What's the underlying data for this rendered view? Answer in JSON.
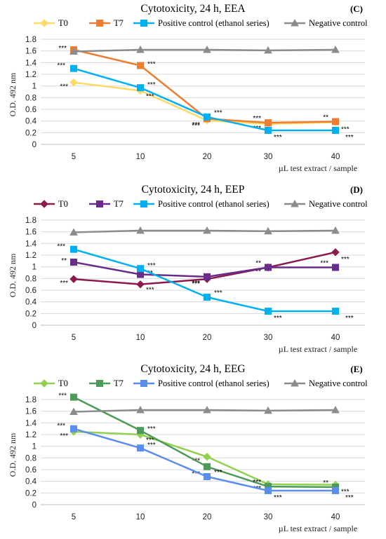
{
  "chart_data": [
    {
      "type": "line",
      "title": "Cytotoxicity, 24 h, EEA",
      "panel_label": "(C)",
      "xlabel": "µL test extract / sample",
      "ylabel": "O.D. 492 nm",
      "categories": [
        "5",
        "10",
        "20",
        "30",
        "40"
      ],
      "ylim": [
        0,
        1.8
      ],
      "yticks": [
        "0",
        "0.2",
        "0.4",
        "0.6",
        "0.8",
        "1",
        "1.2",
        "1.4",
        "1.6",
        "1.8"
      ],
      "grid": true,
      "legend_position": "top",
      "series": [
        {
          "name": "T0",
          "color": "#ffd966",
          "marker": "diamond",
          "values": [
            1.06,
            0.92,
            0.41,
            0.35,
            0.38
          ],
          "labels": [
            "***",
            "***",
            "***",
            "***",
            "***"
          ]
        },
        {
          "name": "T7",
          "color": "#ed7d31",
          "marker": "square",
          "values": [
            1.62,
            1.35,
            0.44,
            0.37,
            0.39
          ],
          "labels": [
            "***",
            "***",
            "***",
            "***",
            "**"
          ]
        },
        {
          "name": "Positive control (ethanol series)",
          "color": "#00b0f0",
          "marker": "square",
          "values": [
            1.3,
            0.97,
            0.47,
            0.24,
            0.24
          ],
          "labels": [
            "***",
            "***",
            "***",
            "***",
            "***"
          ]
        },
        {
          "name": "Negative control",
          "color": "#8c8c8c",
          "marker": "triangle",
          "values": [
            1.59,
            1.62,
            1.62,
            1.61,
            1.62
          ],
          "labels": [
            "",
            "",
            "",
            "",
            ""
          ]
        }
      ]
    },
    {
      "type": "line",
      "title": "Cytotoxicity, 24 h, EEP",
      "panel_label": "(D)",
      "xlabel": "µL test extract / sample",
      "ylabel": "O.D. 492 nm",
      "categories": [
        "5",
        "10",
        "20",
        "30",
        "40"
      ],
      "ylim": [
        0,
        1.8
      ],
      "yticks": [
        "0",
        "0.2",
        "0.4",
        "0.6",
        "0.8",
        "1",
        "1.2",
        "1.4",
        "1.6",
        "1.8"
      ],
      "grid": true,
      "legend_position": "top",
      "series": [
        {
          "name": "T0",
          "color": "#8b1a4f",
          "marker": "diamond",
          "values": [
            0.79,
            0.7,
            0.79,
            0.99,
            1.25
          ],
          "labels": [
            "***",
            "***",
            "***",
            "**",
            "***"
          ]
        },
        {
          "name": "T7",
          "color": "#6a2c8a",
          "marker": "square",
          "values": [
            1.08,
            0.87,
            0.83,
            0.99,
            0.99
          ],
          "labels": [
            "**",
            "**",
            "***",
            "**",
            "***"
          ]
        },
        {
          "name": "Positive control (ethanol series)",
          "color": "#00b0f0",
          "marker": "square",
          "values": [
            1.3,
            0.97,
            0.48,
            0.24,
            0.24
          ],
          "labels": [
            "***",
            "***",
            "***",
            "***",
            "***"
          ]
        },
        {
          "name": "Negative control",
          "color": "#8c8c8c",
          "marker": "triangle",
          "values": [
            1.59,
            1.62,
            1.62,
            1.61,
            1.62
          ],
          "labels": [
            "",
            "",
            "",
            "",
            ""
          ]
        }
      ]
    },
    {
      "type": "line",
      "title": "Cytotoxicity, 24 h, EEG",
      "panel_label": "(E)",
      "xlabel": "µL test extract / sample",
      "ylabel": "O.D. 492 nm",
      "categories": [
        "5",
        "10",
        "20",
        "30",
        "40"
      ],
      "ylim": [
        0,
        1.8
      ],
      "yticks": [
        "0",
        "0.2",
        "0.4",
        "0.6",
        "0.8",
        "1",
        "1.2",
        "1.4",
        "1.6",
        "1.8"
      ],
      "grid": true,
      "legend_position": "top",
      "series": [
        {
          "name": "T0",
          "color": "#92d050",
          "marker": "diamond",
          "values": [
            1.25,
            1.2,
            0.82,
            0.35,
            0.34
          ],
          "labels": [
            "***",
            "***",
            "***",
            "***",
            "***"
          ]
        },
        {
          "name": "T7",
          "color": "#4e9a5a",
          "marker": "square",
          "values": [
            1.84,
            1.27,
            0.65,
            0.31,
            0.3
          ],
          "labels": [
            "***",
            "***",
            "***",
            "***",
            "**"
          ]
        },
        {
          "name": "Positive control (ethanol series)",
          "color": "#5b8def",
          "marker": "square",
          "values": [
            1.3,
            0.97,
            0.48,
            0.24,
            0.24
          ],
          "labels": [
            "***",
            "***",
            "***",
            "***",
            "***"
          ]
        },
        {
          "name": "Negative control",
          "color": "#8c8c8c",
          "marker": "triangle",
          "values": [
            1.59,
            1.62,
            1.62,
            1.61,
            1.62
          ],
          "labels": [
            "",
            "",
            "",
            "",
            ""
          ]
        }
      ]
    }
  ]
}
